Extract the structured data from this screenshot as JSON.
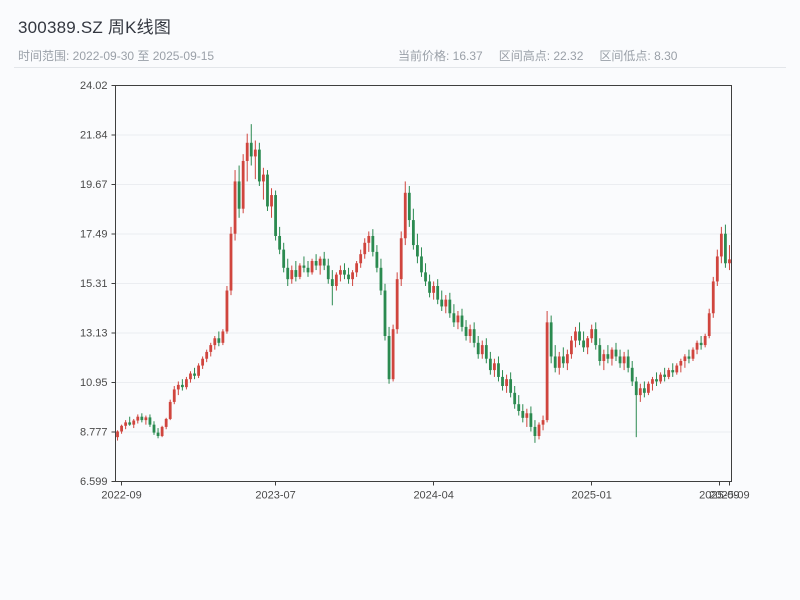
{
  "header": {
    "title": "300389.SZ 周K线图",
    "range_label": "时间范围: 2022-09-30 至 2025-09-15",
    "stats": {
      "current": "当前价格: 16.37",
      "high": "区间高点: 22.32",
      "low": "区间低点: 8.30"
    }
  },
  "chart_data": {
    "type": "candlestick",
    "title": "300389.SZ 周K线图",
    "period": "weekly",
    "date_start": "2022-09-30",
    "date_end": "2025-09-15",
    "current_price": 16.37,
    "period_high": 22.32,
    "period_low": 8.3,
    "ylim": [
      6.599,
      24.02
    ],
    "grid": true,
    "colors": {
      "up": "#d0453e",
      "down": "#2b8a50",
      "frame": "#3f3f3f",
      "grid": "#ebedf1",
      "tick_text": "#4a4a4a"
    },
    "yticks": [
      {
        "value": 24.02,
        "label": "24.02"
      },
      {
        "value": 21.84,
        "label": "21.84"
      },
      {
        "value": 19.67,
        "label": "19.67"
      },
      {
        "value": 17.49,
        "label": "17.49"
      },
      {
        "value": 15.31,
        "label": "15.31"
      },
      {
        "value": 13.13,
        "label": "13.13"
      },
      {
        "value": 10.95,
        "label": "10.95"
      },
      {
        "value": 8.777,
        "label": "8.777"
      },
      {
        "value": 6.599,
        "label": "6.599"
      }
    ],
    "xticks": [
      {
        "pos": 1,
        "label": "2022-09"
      },
      {
        "pos": 39,
        "label": "2023-07"
      },
      {
        "pos": 78,
        "label": "2024-04"
      },
      {
        "pos": 117,
        "label": "2025-01"
      },
      {
        "pos": 148.5,
        "label": "2025-09"
      },
      {
        "pos": 151,
        "label": "2025-09"
      }
    ],
    "candles": [
      [
        8.55,
        8.85,
        8.4,
        8.8
      ],
      [
        8.8,
        9.1,
        8.7,
        9.05
      ],
      [
        9.05,
        9.3,
        8.9,
        9.2
      ],
      [
        9.2,
        9.45,
        9.05,
        9.1
      ],
      [
        9.1,
        9.35,
        8.95,
        9.28
      ],
      [
        9.28,
        9.55,
        9.15,
        9.45
      ],
      [
        9.45,
        9.6,
        9.2,
        9.3
      ],
      [
        9.3,
        9.5,
        9.1,
        9.42
      ],
      [
        9.42,
        9.55,
        9.0,
        9.1
      ],
      [
        9.1,
        9.25,
        8.65,
        8.75
      ],
      [
        8.75,
        8.95,
        8.5,
        8.6
      ],
      [
        8.6,
        9.05,
        8.55,
        9.0
      ],
      [
        9.0,
        9.4,
        8.9,
        9.35
      ],
      [
        9.35,
        10.2,
        9.3,
        10.1
      ],
      [
        10.1,
        10.8,
        10.0,
        10.65
      ],
      [
        10.65,
        11.0,
        10.4,
        10.85
      ],
      [
        10.85,
        11.1,
        10.6,
        10.75
      ],
      [
        10.75,
        11.2,
        10.65,
        11.1
      ],
      [
        11.1,
        11.45,
        10.95,
        11.35
      ],
      [
        11.35,
        11.6,
        11.1,
        11.25
      ],
      [
        11.25,
        11.8,
        11.15,
        11.7
      ],
      [
        11.7,
        12.1,
        11.55,
        12.0
      ],
      [
        12.0,
        12.4,
        11.85,
        12.3
      ],
      [
        12.3,
        12.7,
        12.1,
        12.6
      ],
      [
        12.6,
        13.0,
        12.4,
        12.9
      ],
      [
        12.9,
        13.2,
        12.55,
        12.7
      ],
      [
        12.7,
        13.3,
        12.6,
        13.2
      ],
      [
        13.2,
        15.2,
        13.1,
        15.0
      ],
      [
        15.0,
        17.8,
        14.8,
        17.5
      ],
      [
        17.5,
        20.3,
        17.2,
        19.8
      ],
      [
        19.8,
        20.5,
        18.2,
        18.6
      ],
      [
        18.6,
        21.0,
        18.4,
        20.7
      ],
      [
        20.7,
        21.9,
        19.8,
        21.5
      ],
      [
        21.5,
        22.32,
        20.5,
        20.9
      ],
      [
        20.9,
        21.6,
        19.9,
        21.2
      ],
      [
        21.2,
        21.5,
        19.6,
        19.8
      ],
      [
        19.8,
        20.4,
        19.0,
        20.1
      ],
      [
        20.1,
        20.3,
        18.5,
        18.7
      ],
      [
        18.7,
        19.5,
        18.2,
        19.2
      ],
      [
        19.2,
        19.4,
        17.2,
        17.4
      ],
      [
        17.4,
        17.8,
        16.6,
        16.8
      ],
      [
        16.8,
        17.1,
        15.8,
        16.0
      ],
      [
        16.0,
        16.4,
        15.2,
        15.5
      ],
      [
        15.5,
        16.1,
        15.3,
        15.9
      ],
      [
        15.9,
        16.3,
        15.4,
        15.6
      ],
      [
        15.6,
        16.2,
        15.5,
        16.1
      ],
      [
        16.1,
        16.5,
        15.8,
        16.0
      ],
      [
        16.0,
        16.3,
        15.6,
        15.8
      ],
      [
        15.8,
        16.4,
        15.7,
        16.3
      ],
      [
        16.3,
        16.6,
        15.9,
        16.1
      ],
      [
        16.1,
        16.5,
        15.7,
        16.4
      ],
      [
        16.4,
        16.7,
        15.9,
        16.1
      ],
      [
        16.1,
        16.4,
        15.3,
        15.5
      ],
      [
        15.5,
        15.9,
        14.35,
        15.2
      ],
      [
        15.2,
        15.8,
        15.0,
        15.7
      ],
      [
        15.7,
        16.1,
        15.4,
        15.9
      ],
      [
        15.9,
        16.2,
        15.5,
        15.7
      ],
      [
        15.7,
        16.0,
        15.3,
        15.5
      ],
      [
        15.5,
        15.9,
        15.2,
        15.8
      ],
      [
        15.8,
        16.3,
        15.6,
        16.2
      ],
      [
        16.2,
        16.8,
        16.0,
        16.6
      ],
      [
        16.6,
        17.3,
        16.4,
        17.1
      ],
      [
        17.1,
        17.6,
        16.7,
        17.4
      ],
      [
        17.4,
        17.7,
        16.5,
        16.7
      ],
      [
        16.7,
        17.0,
        15.8,
        16.0
      ],
      [
        16.0,
        16.4,
        14.8,
        15.0
      ],
      [
        15.0,
        15.3,
        12.8,
        13.0
      ],
      [
        13.0,
        13.4,
        10.9,
        11.1
      ],
      [
        11.1,
        13.5,
        11.0,
        13.3
      ],
      [
        13.3,
        15.8,
        13.1,
        15.5
      ],
      [
        15.5,
        17.6,
        15.2,
        17.3
      ],
      [
        17.3,
        19.8,
        17.0,
        19.3
      ],
      [
        19.3,
        19.6,
        17.8,
        18.1
      ],
      [
        18.1,
        18.6,
        16.8,
        17.0
      ],
      [
        17.0,
        17.5,
        16.2,
        16.5
      ],
      [
        16.5,
        16.9,
        15.6,
        15.8
      ],
      [
        15.8,
        16.2,
        15.2,
        15.4
      ],
      [
        15.4,
        15.7,
        14.7,
        14.9
      ],
      [
        14.9,
        15.4,
        14.6,
        15.2
      ],
      [
        15.2,
        15.5,
        14.4,
        14.6
      ],
      [
        14.6,
        15.0,
        14.1,
        14.3
      ],
      [
        14.3,
        14.8,
        14.0,
        14.6
      ],
      [
        14.6,
        14.9,
        13.8,
        14.0
      ],
      [
        14.0,
        14.4,
        13.4,
        13.6
      ],
      [
        13.6,
        14.1,
        13.3,
        13.9
      ],
      [
        13.9,
        14.2,
        13.2,
        13.4
      ],
      [
        13.4,
        13.7,
        12.8,
        13.0
      ],
      [
        13.0,
        13.5,
        12.7,
        13.3
      ],
      [
        13.3,
        13.6,
        12.5,
        12.7
      ],
      [
        12.7,
        13.0,
        12.0,
        12.2
      ],
      [
        12.2,
        12.8,
        12.0,
        12.6
      ],
      [
        12.6,
        12.9,
        11.8,
        12.0
      ],
      [
        12.0,
        12.3,
        11.3,
        11.5
      ],
      [
        11.5,
        12.0,
        11.2,
        11.8
      ],
      [
        11.8,
        12.1,
        11.0,
        11.2
      ],
      [
        11.2,
        11.5,
        10.6,
        10.8
      ],
      [
        10.8,
        11.3,
        10.5,
        11.1
      ],
      [
        11.1,
        11.4,
        10.3,
        10.5
      ],
      [
        10.5,
        10.8,
        9.8,
        10.0
      ],
      [
        10.0,
        10.4,
        9.5,
        9.7
      ],
      [
        9.7,
        10.0,
        9.2,
        9.4
      ],
      [
        9.4,
        9.8,
        9.0,
        9.6
      ],
      [
        9.6,
        9.9,
        8.8,
        9.0
      ],
      [
        9.0,
        9.3,
        8.3,
        8.6
      ],
      [
        8.6,
        9.2,
        8.45,
        9.1
      ],
      [
        9.1,
        9.5,
        8.85,
        9.3
      ],
      [
        9.3,
        14.1,
        9.2,
        13.6
      ],
      [
        13.6,
        13.9,
        11.8,
        12.1
      ],
      [
        12.1,
        12.6,
        11.4,
        11.6
      ],
      [
        11.6,
        12.3,
        11.3,
        12.1
      ],
      [
        12.1,
        12.5,
        11.6,
        11.8
      ],
      [
        11.8,
        12.4,
        11.5,
        12.2
      ],
      [
        12.2,
        13.0,
        12.0,
        12.8
      ],
      [
        12.8,
        13.4,
        12.5,
        13.2
      ],
      [
        13.2,
        13.6,
        12.6,
        12.8
      ],
      [
        12.8,
        13.2,
        12.3,
        12.5
      ],
      [
        12.5,
        13.0,
        12.2,
        12.9
      ],
      [
        12.9,
        13.5,
        12.7,
        13.3
      ],
      [
        13.3,
        13.6,
        12.4,
        12.6
      ],
      [
        12.6,
        12.9,
        11.7,
        11.9
      ],
      [
        11.9,
        12.4,
        11.5,
        12.2
      ],
      [
        12.2,
        12.6,
        11.8,
        12.0
      ],
      [
        12.0,
        12.5,
        11.7,
        12.4
      ],
      [
        12.4,
        12.7,
        11.9,
        12.1
      ],
      [
        12.1,
        12.4,
        11.6,
        11.8
      ],
      [
        11.8,
        12.3,
        11.5,
        12.1
      ],
      [
        12.1,
        12.4,
        11.4,
        11.6
      ],
      [
        11.6,
        11.9,
        10.8,
        11.0
      ],
      [
        11.0,
        11.2,
        8.55,
        10.4
      ],
      [
        10.4,
        10.9,
        10.1,
        10.7
      ],
      [
        10.7,
        11.0,
        10.3,
        10.5
      ],
      [
        10.5,
        11.0,
        10.4,
        10.9
      ],
      [
        10.9,
        11.2,
        10.6,
        11.1
      ],
      [
        11.1,
        11.4,
        10.8,
        11.0
      ],
      [
        11.0,
        11.4,
        10.9,
        11.3
      ],
      [
        11.3,
        11.6,
        11.0,
        11.2
      ],
      [
        11.2,
        11.6,
        11.1,
        11.5
      ],
      [
        11.5,
        11.8,
        11.2,
        11.4
      ],
      [
        11.4,
        11.8,
        11.3,
        11.7
      ],
      [
        11.7,
        12.0,
        11.4,
        11.9
      ],
      [
        11.9,
        12.2,
        11.6,
        12.1
      ],
      [
        12.1,
        12.4,
        11.8,
        12.0
      ],
      [
        12.0,
        12.5,
        11.9,
        12.4
      ],
      [
        12.4,
        12.8,
        12.2,
        12.7
      ],
      [
        12.7,
        13.0,
        12.4,
        12.6
      ],
      [
        12.6,
        13.1,
        12.5,
        13.0
      ],
      [
        13.0,
        14.2,
        12.9,
        14.0
      ],
      [
        14.0,
        15.6,
        13.8,
        15.4
      ],
      [
        15.4,
        16.8,
        15.2,
        16.5
      ],
      [
        16.5,
        17.8,
        16.2,
        17.5
      ],
      [
        17.5,
        17.9,
        16.0,
        16.2
      ],
      [
        16.2,
        17.0,
        15.9,
        16.37
      ]
    ]
  }
}
